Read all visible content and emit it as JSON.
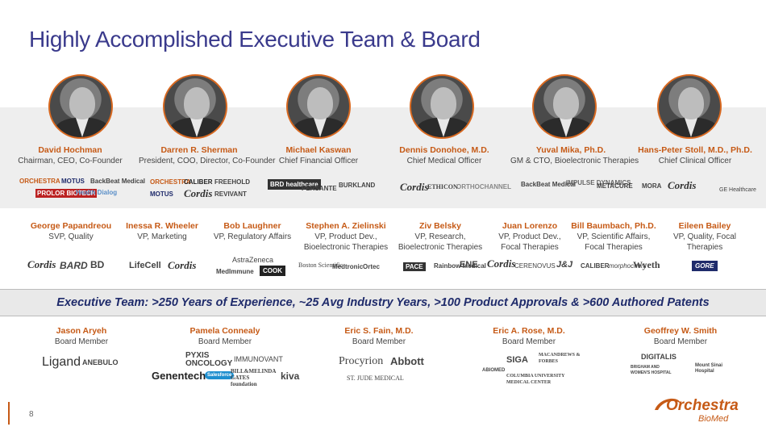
{
  "title": "Highly Accomplished Executive Team & Board",
  "executives": [
    {
      "name": "David Hochman",
      "role": "Chairman, CEO, Co-Founder"
    },
    {
      "name": "Darren R. Sherman",
      "role": "President, COO, Director, Co-Founder"
    },
    {
      "name": "Michael Kaswan",
      "role": "Chief Financial Officer"
    },
    {
      "name": "Dennis Donohoe, M.D.",
      "role": "Chief Medical Officer"
    },
    {
      "name": "Yuval Mika, Ph.D.",
      "role": "GM & CTO, Bioelectronic Therapies"
    },
    {
      "name": "Hans-Peter Stoll, M.D., Ph.D.",
      "role": "Chief Clinical Officer"
    }
  ],
  "exec_logos": [
    "ORCHESTRA",
    "MOTUS",
    "BackBeat Medical",
    "PROLOR BIOTECH",
    "Health Dialog",
    "ORCHESTRA",
    "CALIBER",
    "FREEHOLD",
    "MOTUS",
    "Cordis",
    "REVIVANT",
    "BRD healthcare",
    "PERSANTE",
    "BURKLAND",
    "Cordis",
    "ETHICON",
    "ORTHOCHANNEL",
    "BackBeat Medical",
    "IMPULSE DYNAMICS",
    "METACURE",
    "MORA",
    "Cordis",
    "GE Healthcare"
  ],
  "vps": [
    {
      "name": "George Papandreou",
      "role": "SVP, Quality"
    },
    {
      "name": "Inessa R. Wheeler",
      "role": "VP, Marketing"
    },
    {
      "name": "Bob Laughner",
      "role": "VP, Regulatory Affairs"
    },
    {
      "name": "Stephen A. Zielinski",
      "role": "VP, Product Dev., Bioelectronic Therapies"
    },
    {
      "name": "Ziv Belsky",
      "role": "VP, Research, Bioelectronic Therapies"
    },
    {
      "name": "Juan Lorenzo",
      "role": "VP, Product Dev., Focal Therapies"
    },
    {
      "name": "Bill Baumbach, Ph.D.",
      "role": "VP, Scientific Affairs, Focal Therapies"
    },
    {
      "name": "Eileen Bailey",
      "role": "VP, Quality, Focal Therapies"
    }
  ],
  "vp_logos": [
    "Cordis",
    "BARD",
    "BD",
    "LifeCell",
    "Cordis",
    "AstraZeneca",
    "MedImmune",
    "COOK",
    "Boston Scientific",
    "Medtronic",
    "Ortec",
    "PACE",
    "Rainbow Medical",
    "ENE",
    "Cordis",
    "CERENOVUS",
    "J&J",
    "CALIBER",
    "morphochem",
    "Wyeth",
    "GORE"
  ],
  "banner": "Executive Team: >250 Years of Experience, ~25 Avg Industry Years, >100 Product Approvals & >600 Authored Patents",
  "board": [
    {
      "name": "Jason Aryeh",
      "role": "Board Member"
    },
    {
      "name": "Pamela Connealy",
      "role": "Board Member"
    },
    {
      "name": "Eric S. Fain, M.D.",
      "role": "Board Member"
    },
    {
      "name": "Eric A. Rose, M.D.",
      "role": "Board Member"
    },
    {
      "name": "Geoffrey W. Smith",
      "role": "Board Member"
    }
  ],
  "board_logos": [
    "Ligand",
    "ANEBULO",
    "PYXIS ONCOLOGY",
    "IMMUNOVANT",
    "Genentech",
    "Salesforce",
    "BILL&MELINDA GATES foundation",
    "kiva",
    "Procyrion",
    "Abbott",
    "ST. JUDE MEDICAL",
    "ABIOMED",
    "SIGA",
    "MACANDREWS & FORBES",
    "COLUMBIA UNIVERSITY MEDICAL CENTER",
    "DIGITALIS",
    "BRIGHAM AND WOMEN'S HOSPITAL",
    "Mount Sinai Hospital"
  ],
  "page_number": "8",
  "brand": {
    "name": "Orchestra",
    "sub": "BioMed",
    "accent": "#c65a16",
    "navy": "#1f2b6b"
  }
}
